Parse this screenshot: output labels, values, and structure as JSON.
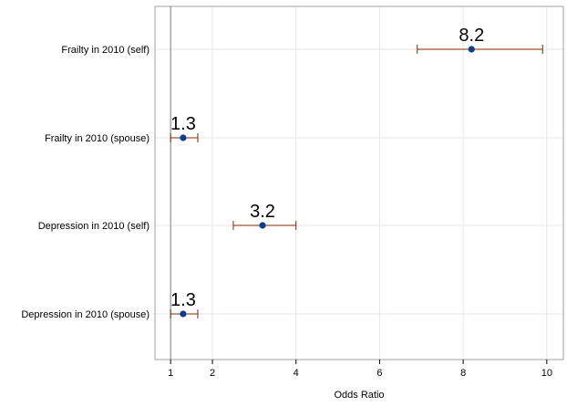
{
  "chart_data": {
    "type": "forest",
    "xlabel": "Odds Ratio",
    "xlim": [
      0.8,
      10.2
    ],
    "xticks": [
      1,
      2,
      4,
      6,
      8,
      10
    ],
    "reference_line": 1,
    "grid": true,
    "rows": [
      {
        "label": "Frailty in 2010 (self)",
        "estimate": 8.2,
        "lower": 6.9,
        "upper": 9.9,
        "value_label": "8.2"
      },
      {
        "label": "Frailty in 2010 (spouse)",
        "estimate": 1.3,
        "lower": 1.0,
        "upper": 1.65,
        "value_label": "1.3"
      },
      {
        "label": "Depression in 2010 (self)",
        "estimate": 3.2,
        "lower": 2.5,
        "upper": 4.0,
        "value_label": "3.2"
      },
      {
        "label": "Depression in 2010 (spouse)",
        "estimate": 1.3,
        "lower": 1.0,
        "upper": 1.65,
        "value_label": "1.3"
      }
    ],
    "colors": {
      "point": "#0b3d91",
      "ci": "#8b2500",
      "grid": "#e6e6e6",
      "frame": "#a0a0a0",
      "reference": "#808080"
    }
  }
}
